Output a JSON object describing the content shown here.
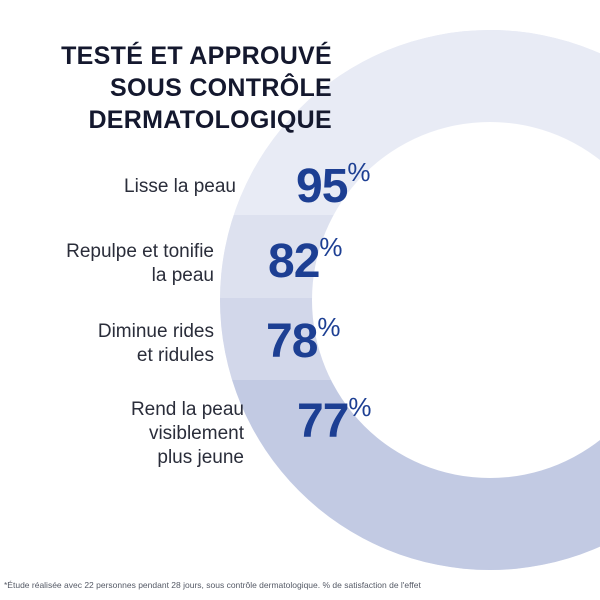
{
  "title_lines": [
    "TESTÉ ET APPROUVÉ",
    "SOUS CONTRÔLE",
    "DERMATOLOGIQUE"
  ],
  "results": [
    {
      "label_lines": [
        "Lisse la peau"
      ],
      "value": "95",
      "unit": "%"
    },
    {
      "label_lines": [
        "Repulpe et tonifie",
        "la peau"
      ],
      "value": "82",
      "unit": "%"
    },
    {
      "label_lines": [
        "Diminue rides",
        "et ridules"
      ],
      "value": "78",
      "unit": "%"
    },
    {
      "label_lines": [
        "Rend la peau",
        "visiblement",
        "plus jeune"
      ],
      "value": "77",
      "unit": "%"
    }
  ],
  "footnote": "*Étude réalisée avec 22 personnes pendant 28 jours, sous contrôle dermatologique. % de satisfaction de l'effet",
  "colors": {
    "accent": "#1d3f93",
    "band_1": "#e8ebf5",
    "band_2": "#dde1ef",
    "band_3": "#d2d7ea",
    "band_4": "#c2cae3"
  }
}
